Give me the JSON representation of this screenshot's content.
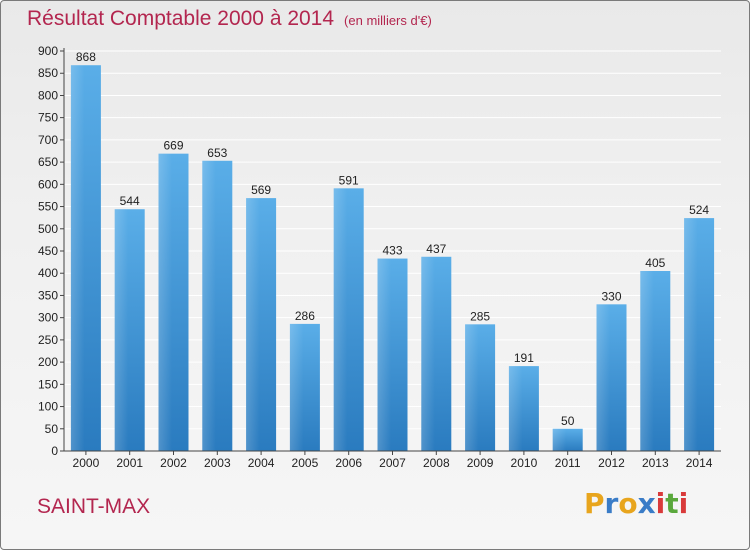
{
  "header": {
    "title": "Résultat Comptable 2000 à 2014",
    "subtitle": "(en milliers d'€)"
  },
  "footer": {
    "place": "SAINT-MAX",
    "logo_text": "Proxiti",
    "logo_letters": [
      {
        "ch": "P",
        "color": "#e8a51d"
      },
      {
        "ch": "r",
        "color": "#3a7cc7"
      },
      {
        "ch": "o",
        "color": "#e8a51d"
      },
      {
        "ch": "x",
        "color": "#3a7cc7"
      },
      {
        "ch": "i",
        "color": "#d93a3a"
      },
      {
        "ch": "t",
        "color": "#5aa83c"
      },
      {
        "ch": "i",
        "color": "#d93a3a"
      }
    ]
  },
  "colors": {
    "accent": "#b3264f",
    "bar_top": "#5aaee8",
    "bar_bottom": "#2a7bbf",
    "grid": "#ffffff"
  },
  "chart_data": {
    "type": "bar",
    "title": "Résultat Comptable 2000 à 2014",
    "subtitle": "(en milliers d'€)",
    "categories": [
      "2000",
      "2001",
      "2002",
      "2003",
      "2004",
      "2005",
      "2006",
      "2007",
      "2008",
      "2009",
      "2010",
      "2011",
      "2012",
      "2013",
      "2014"
    ],
    "values": [
      868,
      544,
      669,
      653,
      569,
      286,
      591,
      433,
      437,
      285,
      191,
      50,
      330,
      405,
      524
    ],
    "ylim": [
      0,
      900
    ],
    "yticks": [
      0,
      50,
      100,
      150,
      200,
      250,
      300,
      350,
      400,
      450,
      500,
      550,
      600,
      650,
      700,
      750,
      800,
      850,
      900
    ],
    "grid": true,
    "data_labels": true,
    "legend": "none"
  }
}
